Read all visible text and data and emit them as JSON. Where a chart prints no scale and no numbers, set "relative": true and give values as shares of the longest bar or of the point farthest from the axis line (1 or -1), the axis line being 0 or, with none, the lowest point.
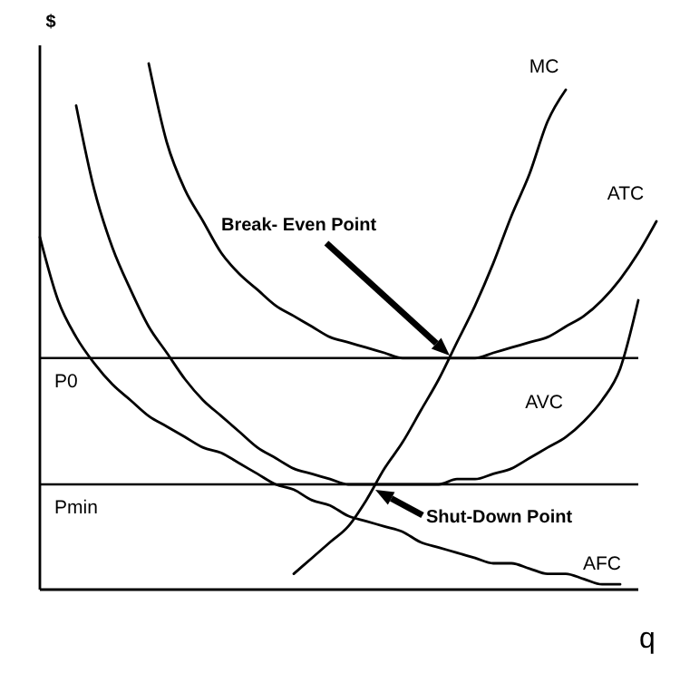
{
  "chart_data": {
    "type": "line",
    "relative": true,
    "xlabel": "q",
    "ylabel": "$",
    "categories": [
      null,
      null,
      null,
      null,
      null,
      null,
      null,
      null,
      null,
      null,
      null,
      null,
      null,
      null,
      null,
      null,
      null,
      null,
      null,
      null,
      null,
      null,
      null,
      null,
      null,
      null,
      null,
      null,
      null,
      null,
      null,
      null,
      null,
      null,
      null
    ],
    "series": [
      {
        "name": "ATC",
        "color": "#000000",
        "values": [
          null,
          null,
          null,
          null,
          null,
          null,
          1.0,
          0.85,
          0.76,
          0.7,
          0.64,
          0.6,
          0.57,
          0.54,
          0.52,
          0.5,
          0.48,
          0.47,
          0.46,
          0.45,
          0.44,
          0.44,
          0.44,
          0.44,
          0.44,
          0.45,
          0.46,
          0.47,
          0.48,
          0.5,
          0.52,
          0.55,
          0.59,
          0.64,
          0.7
        ]
      },
      {
        "name": "AVC",
        "color": "#000000",
        "values": [
          null,
          null,
          0.92,
          0.76,
          0.65,
          0.57,
          0.5,
          0.45,
          0.4,
          0.36,
          0.33,
          0.3,
          0.27,
          0.25,
          0.23,
          0.22,
          0.21,
          0.2,
          0.2,
          0.2,
          0.2,
          0.2,
          0.2,
          0.21,
          0.21,
          0.22,
          0.23,
          0.25,
          0.27,
          0.29,
          0.32,
          0.36,
          0.42,
          0.55,
          null
        ]
      },
      {
        "name": "AFC",
        "color": "#000000",
        "values": [
          0.67,
          0.55,
          0.48,
          0.43,
          0.39,
          0.36,
          0.33,
          0.31,
          0.29,
          0.27,
          0.26,
          0.24,
          0.22,
          0.2,
          0.19,
          0.17,
          0.16,
          0.14,
          0.13,
          0.12,
          0.11,
          0.09,
          0.08,
          0.07,
          0.06,
          0.05,
          0.05,
          0.04,
          0.03,
          0.03,
          0.02,
          0.01,
          0.01,
          null,
          null
        ]
      },
      {
        "name": "MC",
        "color": "#000000",
        "values": [
          null,
          null,
          null,
          null,
          null,
          null,
          null,
          null,
          null,
          null,
          null,
          null,
          null,
          null,
          0.03,
          0.06,
          0.09,
          0.12,
          0.17,
          0.23,
          0.28,
          0.34,
          0.4,
          0.47,
          0.54,
          0.62,
          0.71,
          0.79,
          0.89,
          0.95,
          null,
          null,
          null,
          null,
          null
        ]
      }
    ],
    "ref_lines": [
      {
        "axis": "y",
        "value": 0.44,
        "label": "P0"
      },
      {
        "axis": "y",
        "value": 0.2,
        "label": "Pmin"
      }
    ],
    "annotations": [
      "Break- Even Point",
      "Shut-Down Point"
    ]
  }
}
